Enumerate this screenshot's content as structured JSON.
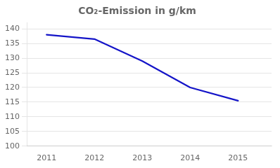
{
  "chart_data": {
    "type": "line",
    "title": "CO₂-Emission in g/km",
    "x": [
      2011,
      2012,
      2013,
      2014,
      2015
    ],
    "values": [
      138,
      136.5,
      129,
      120,
      115.5
    ],
    "color": "#1414c8",
    "xlim": [
      2010.6,
      2015.7
    ],
    "xticks": [
      2011,
      2012,
      2013,
      2014,
      2015
    ],
    "ylim": [
      100,
      142
    ],
    "yticks": [
      100,
      105,
      110,
      115,
      120,
      125,
      130,
      135,
      140
    ],
    "grid": "y"
  }
}
